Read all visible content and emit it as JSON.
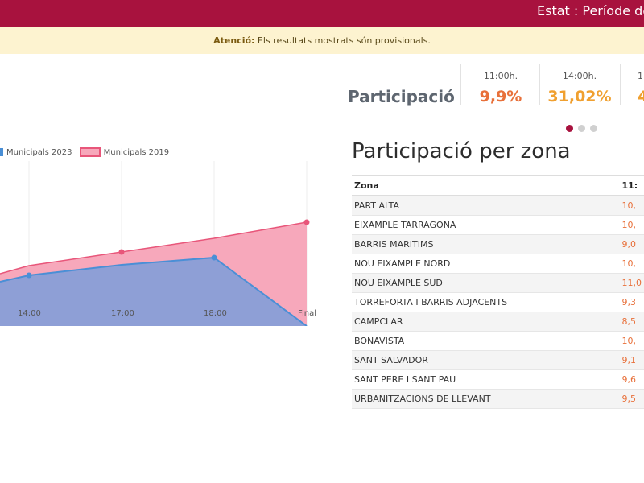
{
  "header": {
    "status_text": "Estat : Període de"
  },
  "notice": {
    "bold": "Atenció:",
    "text": " Els resultats mostrats són provisionals."
  },
  "participation": {
    "title": "Participació",
    "stats": [
      {
        "time": "11:00h.",
        "value": "9,9%",
        "color": "#e8703a"
      },
      {
        "time": "14:00h.",
        "value": "31,02%",
        "color": "#f0a030"
      },
      {
        "time": "1",
        "value": "4",
        "color": "#f0a030"
      }
    ],
    "carousel_page": 1,
    "carousel_total": 3
  },
  "chart_data": {
    "type": "area",
    "x": [
      "",
      "14:00",
      "17:00",
      "18:00",
      "Final"
    ],
    "series": [
      {
        "name": "Municipals 2023",
        "color": "#4a8fd6",
        "fill": "#8e9fd6"
      },
      {
        "name": "Municipals 2019",
        "color": "#e8567a",
        "fill": "#f7a8bb"
      }
    ],
    "legend": "top-left",
    "grid": true
  },
  "zones": {
    "title": "Participació per zona",
    "col_zone": "Zona",
    "col_value": "11:",
    "rows": [
      {
        "name": "PART ALTA",
        "value": "10,"
      },
      {
        "name": "EIXAMPLE TARRAGONA",
        "value": "10,"
      },
      {
        "name": "BARRIS MARITIMS",
        "value": "9,0"
      },
      {
        "name": "NOU EIXAMPLE NORD",
        "value": "10,"
      },
      {
        "name": "NOU EIXAMPLE SUD",
        "value": "11,0"
      },
      {
        "name": "TORREFORTA I BARRIS ADJACENTS",
        "value": "9,3"
      },
      {
        "name": "CAMPCLAR",
        "value": "8,5"
      },
      {
        "name": "BONAVISTA",
        "value": "10,"
      },
      {
        "name": "SANT SALVADOR",
        "value": "9,1"
      },
      {
        "name": "SANT PERE I SANT PAU",
        "value": "9,6"
      },
      {
        "name": "URBANITZACIONS DE LLEVANT",
        "value": "9,5"
      }
    ]
  }
}
